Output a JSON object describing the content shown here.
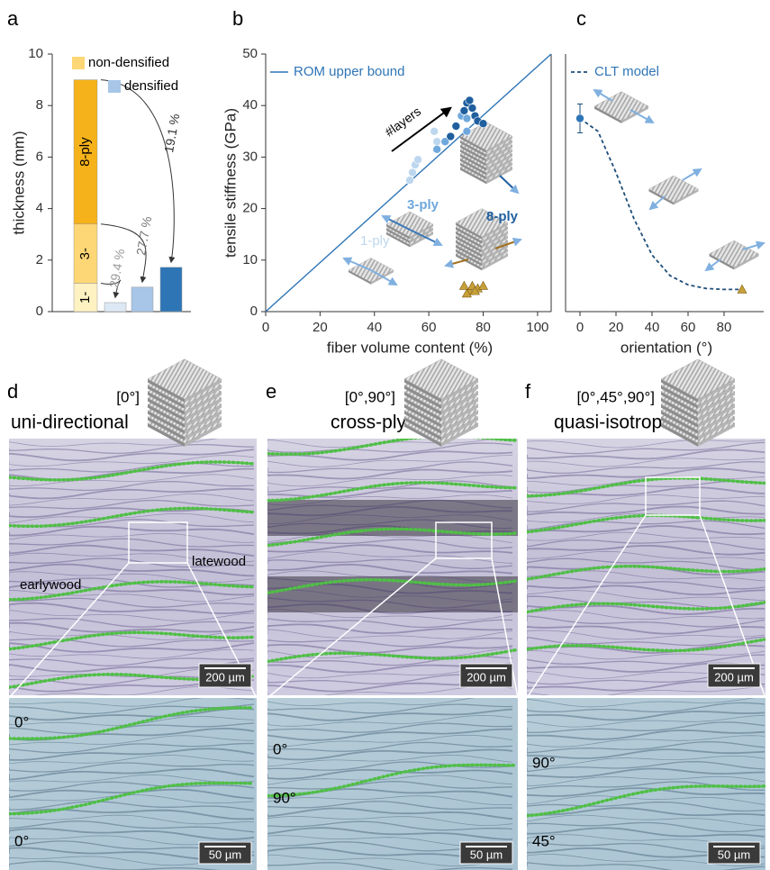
{
  "chart_data": [
    {
      "type": "stacked-bar",
      "label": "a",
      "ylabel": "thickness (mm)",
      "ylim": [
        0,
        10
      ],
      "yticks": [
        0,
        2,
        4,
        6,
        8,
        10
      ],
      "series": [
        {
          "name": "non-densified",
          "color": "#fdd776",
          "segments": [
            {
              "label": "1-",
              "value": 1.1,
              "color": "#fff2c2"
            },
            {
              "label": "3-",
              "value": 2.3,
              "color": "#fdd776"
            },
            {
              "label": "8-ply",
              "value": 5.6,
              "color": "#f6b21a"
            }
          ]
        },
        {
          "name": "densified",
          "color": "#a7c6e8",
          "values": [
            0.35,
            0.95,
            1.72
          ],
          "colors": [
            "#dde8f5",
            "#a7c6e8",
            "#2e75b6"
          ],
          "annotations": [
            "29.4 %",
            "27.7 %",
            "19.1 %"
          ]
        }
      ]
    },
    {
      "type": "scatter",
      "label": "b",
      "xlabel": "fiber volume content (%)",
      "ylabel": "tensile stiffness (GPa)",
      "xlim": [
        0,
        105
      ],
      "ylim": [
        0,
        50
      ],
      "xticks": [
        0,
        20,
        40,
        60,
        80,
        100
      ],
      "yticks": [
        0,
        10,
        20,
        30,
        40,
        50
      ],
      "lines": [
        {
          "name": "ROM upper bound",
          "color": "#2e75b6",
          "x": [
            0,
            105
          ],
          "y": [
            0,
            50
          ]
        }
      ],
      "series": [
        {
          "name": "1-ply",
          "color": "#bdd7ee",
          "marker": "circle",
          "x": [
            53,
            54,
            55,
            56,
            62,
            63
          ],
          "y": [
            25.5,
            27,
            28.5,
            29.5,
            35,
            33
          ]
        },
        {
          "name": "3-ply",
          "color": "#6fa8dc",
          "marker": "circle",
          "x": [
            63,
            66,
            68,
            70,
            72,
            73,
            74,
            74
          ],
          "y": [
            31.5,
            33,
            34,
            36,
            38,
            39,
            37.5,
            35
          ]
        },
        {
          "name": "8-ply",
          "color": "#1f5f9e",
          "marker": "circle",
          "x": [
            68,
            70,
            73,
            74,
            75,
            77,
            78,
            80,
            76
          ],
          "y": [
            34,
            36,
            39,
            40.5,
            41,
            38,
            37,
            36.5,
            39.5
          ]
        },
        {
          "color": "#c8a03a",
          "marker": "triangle",
          "x": [
            73,
            75,
            76,
            78,
            80,
            74,
            77
          ],
          "y": [
            5,
            4,
            5,
            4.5,
            5,
            3.5,
            4
          ]
        }
      ],
      "arrow_label": "#layers"
    },
    {
      "type": "line",
      "label": "c",
      "xlabel": "orientation (°)",
      "xlim": [
        -8,
        102
      ],
      "ylim": [
        0,
        50
      ],
      "xticks": [
        0,
        20,
        40,
        60,
        80
      ],
      "series": [
        {
          "name": "CLT model",
          "color": "#1f4e79",
          "dash": true,
          "x": [
            0,
            10,
            20,
            30,
            40,
            50,
            60,
            70,
            80,
            90
          ],
          "y": [
            37.5,
            35,
            27,
            18,
            11,
            7,
            5.2,
            4.5,
            4.3,
            4.3
          ]
        }
      ],
      "points": [
        {
          "x": 0,
          "y": 37.5,
          "error": 2.8,
          "color": "#2e75b6",
          "marker": "circle"
        },
        {
          "x": 90,
          "y": 4.3,
          "color": "#c8a03a",
          "marker": "triangle"
        }
      ]
    }
  ],
  "panels": [
    {
      "label": "d",
      "layup": "[0°]",
      "name": "uni-directional",
      "annotations": [
        "earlywood",
        "latewood"
      ],
      "scale_bars": [
        "200 µm",
        "50 µm"
      ],
      "orientations": [
        "0°",
        "0°"
      ]
    },
    {
      "label": "e",
      "layup": "[0°,90°]",
      "name": "cross-ply",
      "scale_bars": [
        "200 µm",
        "50 µm"
      ],
      "orientations": [
        "0°",
        "90°"
      ]
    },
    {
      "label": "f",
      "layup": "[0°,45°,90°]",
      "name": "quasi-isotropic",
      "scale_bars": [
        "200 µm",
        "50 µm"
      ],
      "orientations": [
        "90°",
        "45°"
      ]
    }
  ]
}
